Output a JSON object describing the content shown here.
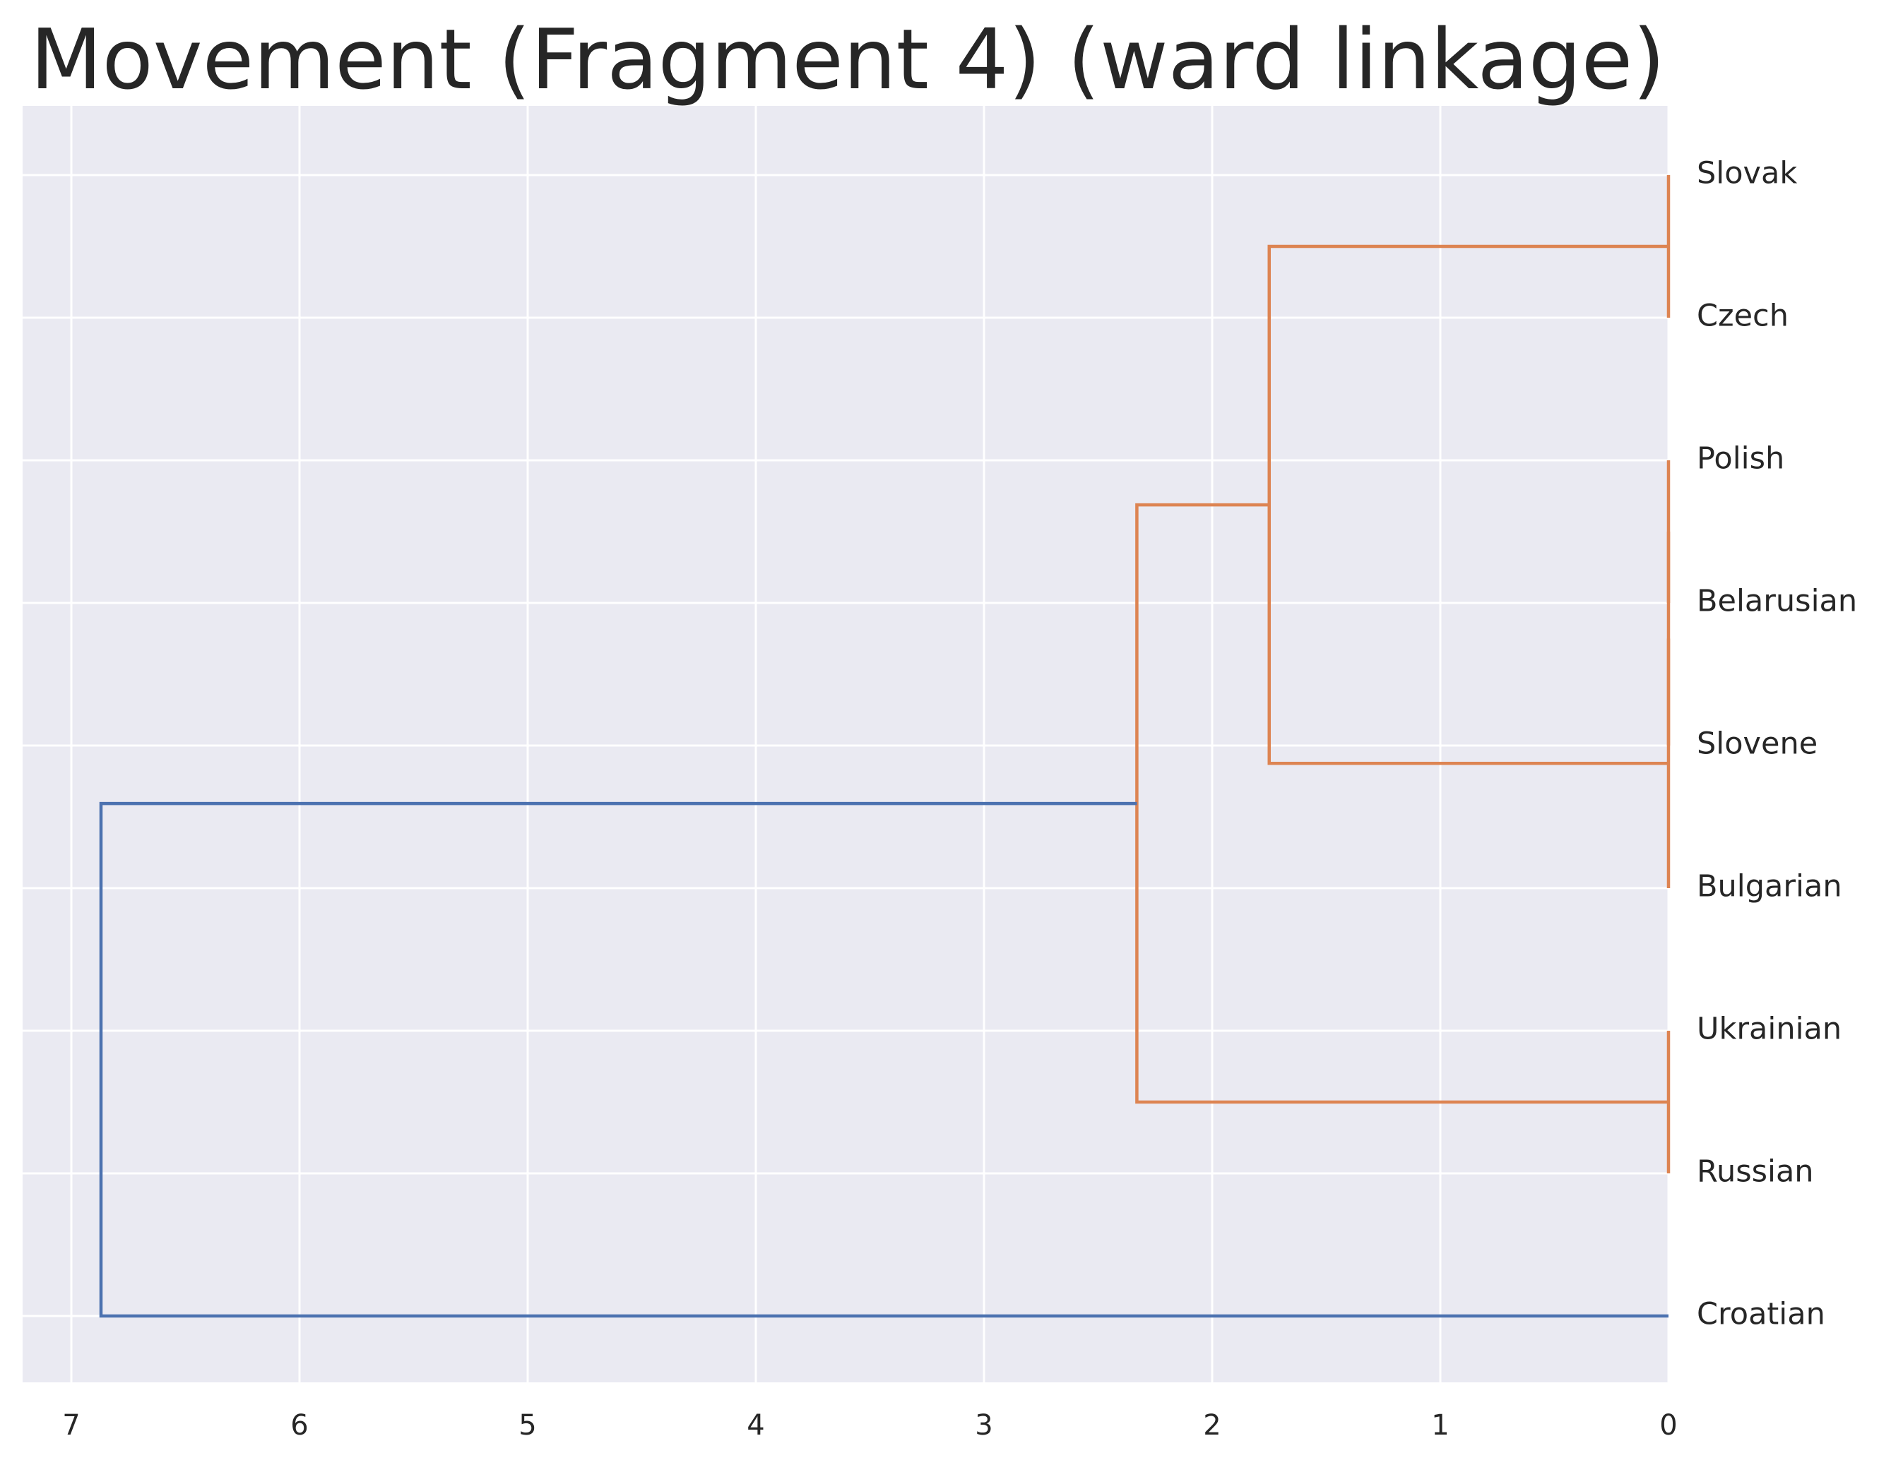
{
  "chart_data": {
    "type": "dendrogram",
    "title": "Movement (Fragment 4) (ward linkage)",
    "orientation": "left",
    "xlabel": "",
    "ylabel": "",
    "xlim": [
      7.2,
      0
    ],
    "x_ticks": [
      7,
      6,
      5,
      4,
      3,
      2,
      1,
      0
    ],
    "grid": true,
    "leaves": [
      "Slovak",
      "Czech",
      "Polish",
      "Belarusian",
      "Slovene",
      "Bulgarian",
      "Ukrainian",
      "Russian",
      "Croatian"
    ],
    "merges": [
      {
        "left": "Slovak",
        "right": "Czech",
        "distance": 0.0,
        "color": "#dd8452"
      },
      {
        "left": "Polish",
        "right": "Belarusian",
        "distance": 0.0,
        "color": "#dd8452"
      },
      {
        "left": "Polish+Belarusian",
        "right": "Slovene",
        "distance": 0.0,
        "color": "#dd8452"
      },
      {
        "left": "Polish+Belarusian+Slovene",
        "right": "Bulgarian",
        "distance": 0.0,
        "color": "#dd8452"
      },
      {
        "left": "Ukrainian",
        "right": "Russian",
        "distance": 0.0,
        "color": "#dd8452"
      },
      {
        "left": "Slovak+Czech",
        "right": "Polish+Belarusian+Slovene+Bulgarian",
        "distance": 1.75,
        "color": "#dd8452"
      },
      {
        "left": "cluster-6",
        "right": "Ukrainian+Russian",
        "distance": 2.33,
        "color": "#dd8452"
      },
      {
        "left": "cluster-7",
        "right": "Croatian",
        "distance": 6.87,
        "color": "#4c72b0"
      }
    ],
    "colors": {
      "cluster": "#dd8452",
      "above_threshold": "#4c72b0",
      "plot_background": "#eaeaf2",
      "grid": "#ffffff"
    }
  }
}
